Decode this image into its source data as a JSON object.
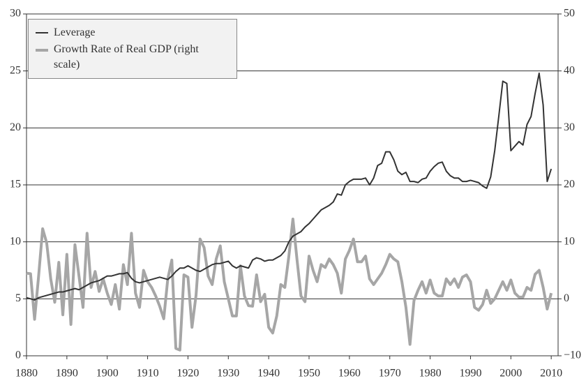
{
  "chart_data": {
    "type": "line",
    "x": [
      1880,
      1881,
      1882,
      1883,
      1884,
      1885,
      1886,
      1887,
      1888,
      1889,
      1890,
      1891,
      1892,
      1893,
      1894,
      1895,
      1896,
      1897,
      1898,
      1899,
      1900,
      1901,
      1902,
      1903,
      1904,
      1905,
      1906,
      1907,
      1908,
      1909,
      1910,
      1911,
      1912,
      1913,
      1914,
      1915,
      1916,
      1917,
      1918,
      1919,
      1920,
      1921,
      1922,
      1923,
      1924,
      1925,
      1926,
      1927,
      1928,
      1929,
      1930,
      1931,
      1932,
      1933,
      1934,
      1935,
      1936,
      1937,
      1938,
      1939,
      1940,
      1941,
      1942,
      1943,
      1944,
      1945,
      1946,
      1947,
      1948,
      1949,
      1950,
      1951,
      1952,
      1953,
      1954,
      1955,
      1956,
      1957,
      1958,
      1959,
      1960,
      1961,
      1962,
      1963,
      1964,
      1965,
      1966,
      1967,
      1968,
      1969,
      1970,
      1971,
      1972,
      1973,
      1974,
      1975,
      1976,
      1977,
      1978,
      1979,
      1980,
      1981,
      1982,
      1983,
      1984,
      1985,
      1986,
      1987,
      1988,
      1989,
      1990,
      1991,
      1992,
      1993,
      1994,
      1995,
      1996,
      1997,
      1998,
      1999,
      2000,
      2001,
      2002,
      2003,
      2004,
      2005,
      2006,
      2007,
      2008,
      2009,
      2010
    ],
    "series": [
      {
        "name": "Leverage",
        "color": "#333333",
        "values": [
          5.1,
          5.0,
          4.9,
          5.1,
          5.2,
          5.3,
          5.4,
          5.5,
          5.6,
          5.6,
          5.7,
          5.8,
          5.9,
          5.8,
          6.0,
          6.2,
          6.4,
          6.5,
          6.6,
          6.8,
          7.0,
          7.0,
          7.1,
          7.2,
          7.2,
          7.3,
          6.8,
          6.5,
          6.4,
          6.5,
          6.6,
          6.7,
          6.8,
          6.9,
          6.8,
          6.7,
          7.0,
          7.4,
          7.7,
          7.7,
          7.9,
          7.7,
          7.5,
          7.4,
          7.6,
          7.8,
          8.0,
          8.1,
          8.1,
          8.2,
          8.3,
          7.9,
          7.7,
          7.9,
          7.8,
          7.7,
          8.4,
          8.6,
          8.5,
          8.3,
          8.4,
          8.4,
          8.6,
          8.8,
          9.2,
          10.0,
          10.5,
          10.7,
          10.9,
          11.3,
          11.6,
          12.0,
          12.4,
          12.8,
          13.0,
          13.2,
          13.5,
          14.2,
          14.1,
          15.0,
          15.3,
          15.5,
          15.5,
          15.5,
          15.6,
          15.0,
          15.6,
          16.7,
          16.9,
          17.9,
          17.9,
          17.2,
          16.2,
          15.9,
          16.1,
          15.3,
          15.3,
          15.2,
          15.5,
          15.6,
          16.2,
          16.6,
          16.9,
          17.0,
          16.2,
          15.8,
          15.6,
          15.6,
          15.3,
          15.3,
          15.4,
          15.3,
          15.2,
          14.9,
          14.7,
          15.7,
          18.0,
          21.0,
          24.1,
          23.9,
          18.0,
          18.4,
          18.8,
          18.5,
          20.3,
          21.0,
          23.0,
          24.8,
          22.0,
          15.3,
          16.4
        ]
      },
      {
        "name": "Growth Rate of Real GDP (right scale)",
        "color": "#a6a6a6",
        "axis": "y2",
        "values": [
          4.5,
          4.4,
          -3.6,
          4.0,
          12.3,
          9.8,
          3.5,
          -0.6,
          6.4,
          -2.8,
          7.8,
          -4.5,
          9.5,
          4.0,
          -1.5,
          11.5,
          2.0,
          4.8,
          1.3,
          3.5,
          1.0,
          -1.0,
          2.5,
          -1.8,
          6.0,
          2.5,
          11.5,
          1.0,
          -1.5,
          5.0,
          3.0,
          2.0,
          0.5,
          -1.3,
          -3.5,
          3.5,
          6.8,
          -8.7,
          -9.0,
          4.2,
          3.8,
          -5.0,
          0.6,
          10.5,
          9.0,
          4.0,
          2.5,
          7.0,
          9.3,
          3.0,
          0.0,
          -3.0,
          -3.0,
          5.8,
          0.5,
          -1.2,
          -1.3,
          4.2,
          -0.5,
          0.8,
          -5.0,
          -6.0,
          -3.0,
          2.5,
          2.0,
          7.5,
          14.0,
          7.0,
          0.5,
          -0.5,
          7.5,
          5.0,
          3.0,
          6.0,
          5.5,
          7.0,
          6.0,
          4.5,
          1.0,
          7.0,
          8.5,
          10.5,
          6.5,
          6.5,
          7.5,
          3.5,
          2.5,
          3.5,
          4.5,
          6.0,
          7.8,
          7.0,
          6.5,
          3.0,
          -1.5,
          -8.0,
          -0.3,
          1.5,
          3.0,
          1.0,
          3.3,
          1.0,
          0.5,
          0.5,
          3.5,
          2.5,
          3.5,
          2.0,
          3.8,
          4.2,
          3.0,
          -1.5,
          -2.0,
          -1.0,
          1.5,
          -0.8,
          0.0,
          1.5,
          3.0,
          1.5,
          3.3,
          1.0,
          0.3,
          0.3,
          2.0,
          1.5,
          4.3,
          5.0,
          2.0,
          -1.8,
          1.0
        ]
      }
    ],
    "xlim": [
      1880,
      2011.7
    ],
    "xticks": [
      1880,
      1890,
      1900,
      1910,
      1920,
      1930,
      1940,
      1950,
      1960,
      1970,
      1980,
      1990,
      2000,
      2010
    ],
    "ylim": [
      0,
      30
    ],
    "yticks": [
      0,
      5,
      10,
      15,
      20,
      25,
      30
    ],
    "y2lim": [
      -10,
      50
    ],
    "y2ticks": [
      {
        "value": -10,
        "label": "−10"
      },
      0,
      10,
      20,
      30,
      40,
      50
    ],
    "grid": true,
    "legend": "upper left"
  }
}
